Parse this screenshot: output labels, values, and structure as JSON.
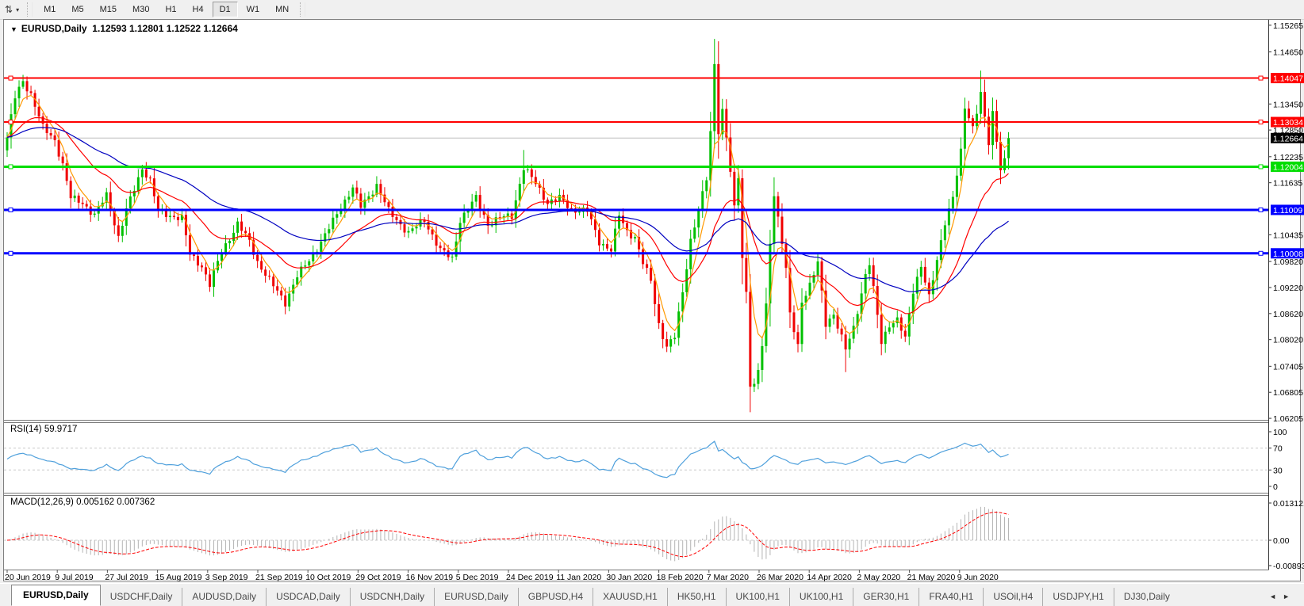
{
  "toolbar": {
    "chart_mode_icon": "⇅",
    "caret_icon": "▾",
    "timeframes": [
      {
        "label": "M1"
      },
      {
        "label": "M5"
      },
      {
        "label": "M15"
      },
      {
        "label": "M30"
      },
      {
        "label": "H1"
      },
      {
        "label": "H4"
      },
      {
        "label": "D1",
        "active": true
      },
      {
        "label": "W1"
      },
      {
        "label": "MN"
      }
    ]
  },
  "chart": {
    "title_symbol": "EURUSD,Daily",
    "title_dropdown_icon": "▼",
    "ohlc_text": "1.12593 1.12801 1.12522 1.12664"
  },
  "chart_data": {
    "type": "candlestick",
    "symbol": "EURUSD",
    "timeframe": "Daily",
    "ohlc": {
      "open": 1.12593,
      "high": 1.12801,
      "low": 1.12522,
      "close": 1.12664
    },
    "ylim": [
      1.0617,
      1.1539
    ],
    "price_axis_ticks": [
      {
        "label": "1.15265",
        "value": 1.15265
      },
      {
        "label": "1.14650",
        "value": 1.1465
      },
      {
        "label": "1.13450",
        "value": 1.1345
      },
      {
        "label": "1.12850",
        "value": 1.1285
      },
      {
        "label": "1.12235",
        "value": 1.12235
      },
      {
        "label": "1.11635",
        "value": 1.11635
      },
      {
        "label": "1.10435",
        "value": 1.10435
      },
      {
        "label": "1.09820",
        "value": 1.0982
      },
      {
        "label": "1.09220",
        "value": 1.0922
      },
      {
        "label": "1.08620",
        "value": 1.0862
      },
      {
        "label": "1.08020",
        "value": 1.0802
      },
      {
        "label": "1.07405",
        "value": 1.07405
      },
      {
        "label": "1.06805",
        "value": 1.06805
      },
      {
        "label": "1.06205",
        "value": 1.06205
      }
    ],
    "h_lines": [
      {
        "label": "1.14047",
        "value": 1.14047,
        "color": "#FF0000",
        "width": 2
      },
      {
        "label": "1.13034",
        "value": 1.13034,
        "color": "#FF0000",
        "width": 2
      },
      {
        "label": "1.12004",
        "value": 1.12004,
        "color": "#00DD00",
        "width": 3
      },
      {
        "label": "1.11009",
        "value": 1.11009,
        "color": "#0000FF",
        "width": 3
      },
      {
        "label": "1.10008",
        "value": 1.10008,
        "color": "#0000FF",
        "width": 3
      }
    ],
    "current_price": {
      "label": "1.12664",
      "value": 1.12664,
      "line_color": "#BDBDBD",
      "tag_color": "#000000"
    },
    "x_labels": [
      "20 Jun 2019",
      "9 Jul 2019",
      "27 Jul 2019",
      "15 Aug 2019",
      "3 Sep 2019",
      "21 Sep 2019",
      "10 Oct 2019",
      "29 Oct 2019",
      "16 Nov 2019",
      "5 Dec 2019",
      "24 Dec 2019",
      "11 Jan 2020",
      "30 Jan 2020",
      "18 Feb 2020",
      "7 Mar 2020",
      "26 Mar 2020",
      "14 Apr 2020",
      "2 May 2020",
      "21 May 2020",
      "9 Jun 2020"
    ],
    "candles": {
      "count": 253,
      "up_color": "#00C000",
      "down_color": "#F00000",
      "anchors": [
        [
          0,
          1.1268
        ],
        [
          2,
          1.136
        ],
        [
          4,
          1.1398
        ],
        [
          6,
          1.1368
        ],
        [
          9,
          1.129
        ],
        [
          12,
          1.1262
        ],
        [
          14,
          1.1205
        ],
        [
          16,
          1.1128
        ],
        [
          19,
          1.1118
        ],
        [
          22,
          1.1088
        ],
        [
          25,
          1.1135
        ],
        [
          27,
          1.1072
        ],
        [
          28,
          1.1038
        ],
        [
          30,
          1.11
        ],
        [
          34,
          1.1198
        ],
        [
          36,
          1.1168
        ],
        [
          38,
          1.1098
        ],
        [
          41,
          1.1088
        ],
        [
          44,
          1.1082
        ],
        [
          46,
          1.0998
        ],
        [
          49,
          1.0972
        ],
        [
          51,
          1.0928
        ],
        [
          54,
          1.1005
        ],
        [
          58,
          1.1068
        ],
        [
          61,
          1.1028
        ],
        [
          63,
          1.0982
        ],
        [
          66,
          1.0938
        ],
        [
          70,
          1.0888
        ],
        [
          73,
          1.0948
        ],
        [
          76,
          1.0985
        ],
        [
          80,
          1.1042
        ],
        [
          84,
          1.1108
        ],
        [
          87,
          1.1152
        ],
        [
          89,
          1.1108
        ],
        [
          93,
          1.1158
        ],
        [
          96,
          1.1098
        ],
        [
          99,
          1.1068
        ],
        [
          101,
          1.1048
        ],
        [
          105,
          1.1078
        ],
        [
          109,
          1.1008
        ],
        [
          112,
          1.0988
        ],
        [
          114,
          1.1078
        ],
        [
          118,
          1.1128
        ],
        [
          121,
          1.1068
        ],
        [
          124,
          1.1082
        ],
        [
          127,
          1.1088
        ],
        [
          130,
          1.1198
        ],
        [
          133,
          1.1162
        ],
        [
          136,
          1.1118
        ],
        [
          139,
          1.1128
        ],
        [
          142,
          1.1102
        ],
        [
          146,
          1.1098
        ],
        [
          149,
          1.1028
        ],
        [
          152,
          1.1008
        ],
        [
          154,
          1.1088
        ],
        [
          156,
          1.1052
        ],
        [
          158,
          1.1038
        ],
        [
          160,
          1.0978
        ],
        [
          162,
          1.0938
        ],
        [
          164,
          1.0838
        ],
        [
          166,
          1.0785
        ],
        [
          168,
          1.0808
        ],
        [
          170,
          1.0912
        ],
        [
          172,
          1.1032
        ],
        [
          174,
          1.1098
        ],
        [
          176,
          1.1172
        ],
        [
          177,
          1.128
        ],
        [
          178,
          1.1438
        ],
        [
          179,
          1.1285
        ],
        [
          180,
          1.133
        ],
        [
          181,
          1.1268
        ],
        [
          182,
          1.1188
        ],
        [
          183,
          1.1102
        ],
        [
          184,
          1.1178
        ],
        [
          185,
          1.0992
        ],
        [
          186,
          1.0912
        ],
        [
          187,
          1.0702
        ],
        [
          188,
          1.0695
        ],
        [
          189,
          1.0728
        ],
        [
          190,
          1.0788
        ],
        [
          191,
          1.0878
        ],
        [
          192,
          1.1028
        ],
        [
          193,
          1.1138
        ],
        [
          195,
          1.1028
        ],
        [
          196,
          1.0962
        ],
        [
          197,
          1.0858
        ],
        [
          199,
          1.0788
        ],
        [
          200,
          1.0892
        ],
        [
          202,
          1.0928
        ],
        [
          204,
          1.0978
        ],
        [
          206,
          1.0838
        ],
        [
          208,
          1.0862
        ],
        [
          211,
          1.0778
        ],
        [
          213,
          1.0828
        ],
        [
          216,
          1.0952
        ],
        [
          217,
          1.0978
        ],
        [
          220,
          1.0795
        ],
        [
          222,
          1.0838
        ],
        [
          224,
          1.0848
        ],
        [
          226,
          1.0802
        ],
        [
          228,
          1.0915
        ],
        [
          230,
          1.0975
        ],
        [
          232,
          1.0898
        ],
        [
          234,
          1.0982
        ],
        [
          236,
          1.1075
        ],
        [
          238,
          1.1132
        ],
        [
          240,
          1.1232
        ],
        [
          241,
          1.1335
        ],
        [
          243,
          1.1292
        ],
        [
          245,
          1.1372
        ],
        [
          247,
          1.1252
        ],
        [
          248,
          1.132
        ],
        [
          250,
          1.1198
        ],
        [
          251,
          1.1218
        ],
        [
          252,
          1.12664
        ]
      ],
      "spike_highs": {
        "4": 1.1412,
        "93": 1.1175,
        "130": 1.1239,
        "178": 1.1495,
        "245": 1.1422,
        "252": 1.12801
      },
      "spike_lows": {
        "28": 1.1027,
        "51": 1.0926,
        "70": 1.0879,
        "166": 1.0778,
        "187": 1.0636,
        "211": 1.0727,
        "220": 1.0766,
        "252": 1.12522
      }
    },
    "moving_averages": [
      {
        "name": "ma-fast",
        "period": 5,
        "color": "#FF9900"
      },
      {
        "name": "ma-mid",
        "period": 22,
        "color": "#FF0000"
      },
      {
        "name": "ma-slow",
        "period": 55,
        "color": "#0000C0"
      }
    ],
    "rsi": {
      "label": "RSI(14) 59.9717",
      "period": 14,
      "current": 59.9717,
      "color": "#4FA0DC",
      "levels": [
        70,
        30
      ],
      "ticks": [
        {
          "label": "100",
          "value": 100
        },
        {
          "label": "70",
          "value": 70
        },
        {
          "label": "30",
          "value": 30
        },
        {
          "label": "0",
          "value": 0
        }
      ]
    },
    "macd": {
      "label": "MACD(12,26,9) 0.005162 0.007362",
      "fast": 12,
      "slow": 26,
      "signal": 9,
      "current_main": 0.005162,
      "current_signal": 0.007362,
      "bar_color": "#B4B4B4",
      "signal_color": "#FF0000",
      "ticks": [
        {
          "label": "0.013121",
          "value": 0.013121
        },
        {
          "label": "0.00",
          "value": 0
        },
        {
          "label": "-0.008933",
          "value": -0.008933
        }
      ]
    }
  },
  "tabs": {
    "items": [
      {
        "label": "EURUSD,Daily",
        "active": true
      },
      {
        "label": "USDCHF,Daily"
      },
      {
        "label": "AUDUSD,Daily"
      },
      {
        "label": "USDCAD,Daily"
      },
      {
        "label": "USDCNH,Daily"
      },
      {
        "label": "EURUSD,Daily"
      },
      {
        "label": "GBPUSD,H4"
      },
      {
        "label": "XAUUSD,H1"
      },
      {
        "label": "HK50,H1"
      },
      {
        "label": "UK100,H1"
      },
      {
        "label": "UK100,H1"
      },
      {
        "label": "GER30,H1"
      },
      {
        "label": "FRA40,H1"
      },
      {
        "label": "USOil,H4"
      },
      {
        "label": "USDJPY,H1"
      },
      {
        "label": "DJ30,Daily"
      }
    ],
    "scroll_left_icon": "◄",
    "scroll_right_icon": "►"
  }
}
